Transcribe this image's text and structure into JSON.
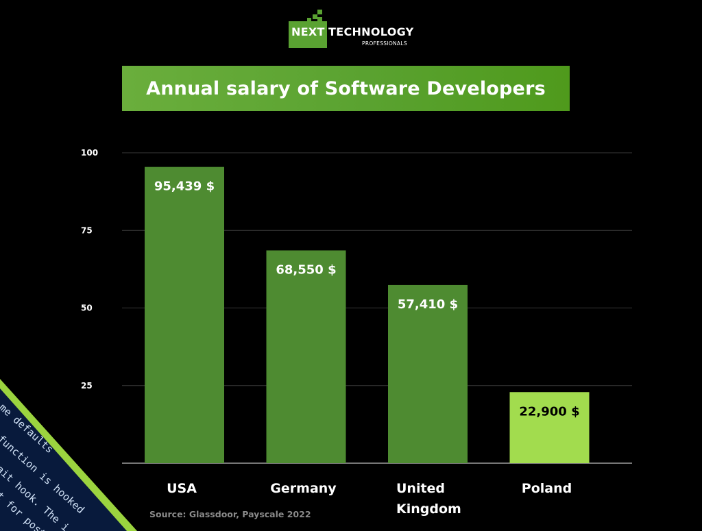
{
  "logo": {
    "word1": "NEXT",
    "word2": "TECHNOLOGY",
    "tagline": "PROFESSIONALS"
  },
  "chart_data": {
    "type": "bar",
    "title": "Annual salary of Software Developers",
    "categories": [
      "USA",
      "Germany",
      "United Kingdom",
      "Poland"
    ],
    "category_lines": [
      [
        "USA"
      ],
      [
        "Germany"
      ],
      [
        "United",
        "Kingdom"
      ],
      [
        "Poland"
      ]
    ],
    "values": [
      95.439,
      68.55,
      57.41,
      22.9
    ],
    "data_labels": [
      "95,439 $",
      "68,550 $",
      "57,410 $",
      "22,900 $"
    ],
    "yticks": [
      100,
      75,
      50,
      25
    ],
    "ylim": [
      0,
      100
    ],
    "grid": true,
    "bar_colors": [
      "#4e8b31",
      "#4e8b31",
      "#4e8b31",
      "#a2dc4e"
    ],
    "label_colors": [
      "#ffffff",
      "#ffffff",
      "#ffffff",
      "#000000"
    ],
    "source": "Source: Glassdoor, Payscale 2022"
  },
  "decor": {
    "code_lines": [
      "me defaults",
      "function is hooked",
      "ait hook. The i",
      "t for post i"
    ]
  },
  "colors": {
    "background": "#000000",
    "accent": "#5aa232",
    "bar": "#4e8b31",
    "highlight_bar": "#a2dc4e",
    "gridline": "#3a3a3a"
  }
}
